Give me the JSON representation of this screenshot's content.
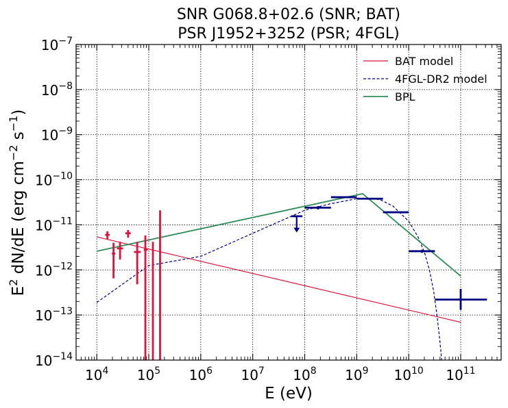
{
  "chart_data": {
    "type": "scatter",
    "title": {
      "line1": "SNR G068.8+02.6 (SNR; BAT)",
      "line2": "PSR J1952+3252 (PSR; 4FGL)"
    },
    "xlabel": "E (eV)",
    "ylabel": "E2 dN/dE (erg cm−2 s−1)",
    "x_scale": "log",
    "y_scale": "log",
    "xlim": [
      4000,
      600000000000
    ],
    "ylim": [
      1e-14,
      1e-07
    ],
    "grid": true,
    "legend_position": "top-right",
    "x_tick_exponents": [
      4,
      5,
      6,
      7,
      8,
      9,
      10,
      11
    ],
    "y_tick_exponents": [
      -14,
      -13,
      -12,
      -11,
      -10,
      -9,
      -8,
      -7
    ],
    "colors": {
      "bat": "#dc143c",
      "fermi": "#000080",
      "bpl": "#2e8b57"
    },
    "series": [
      {
        "name": "BAT model",
        "kind": "line",
        "color": "#dc143c",
        "style": "solid",
        "points": [
          [
            10000,
            5.4e-12
          ],
          [
            100000000000,
            6.9e-14
          ]
        ]
      },
      {
        "name": "4FGL-DR2 model",
        "kind": "line",
        "color": "#000080",
        "style": "dashed",
        "points": [
          [
            10000,
            1.9e-13
          ],
          [
            100000,
            1.25e-12
          ],
          [
            1000000,
            2e-12
          ],
          [
            10000000,
            6.5e-12
          ],
          [
            100000000,
            2.1e-11
          ],
          [
            300000000,
            2.9e-11
          ],
          [
            1000000000,
            3.8e-11
          ],
          [
            2000000000,
            3.9e-11
          ],
          [
            3000000000,
            3.5e-11
          ],
          [
            5000000000,
            2.6e-11
          ],
          [
            10000000000,
            1.2e-11
          ],
          [
            15000000000,
            5.5e-12
          ],
          [
            20000000000,
            2.5e-12
          ],
          [
            25000000000,
            1e-12
          ],
          [
            30000000000,
            3.5e-13
          ],
          [
            35000000000,
            1e-13
          ],
          [
            40000000000,
            2.5e-14
          ],
          [
            43000000000,
            1e-14
          ]
        ]
      },
      {
        "name": "BPL",
        "kind": "line",
        "color": "#2e8b57",
        "style": "solid",
        "points": [
          [
            10000,
            2.6e-12
          ],
          [
            1300000000,
            4.9e-11
          ],
          [
            100000000000,
            7.3e-13
          ]
        ]
      },
      {
        "name": "BAT data",
        "kind": "errorbar",
        "color": "#dc143c",
        "points": [
          {
            "x": 16000,
            "xlo": 14500,
            "xhi": 17700,
            "y": 6e-12,
            "ylo": 4.8e-12,
            "yhi": 7.2e-12
          },
          {
            "x": 21000,
            "xlo": 19500,
            "xhi": 22800,
            "y": 2.3e-12,
            "ylo": 6.5e-13,
            "yhi": 4e-12
          },
          {
            "x": 28000,
            "xlo": 24500,
            "xhi": 32000,
            "y": 3e-12,
            "ylo": 1.7e-12,
            "yhi": 4.2e-12
          },
          {
            "x": 40000,
            "xlo": 35500,
            "xhi": 45000,
            "y": 6.5e-12,
            "ylo": 5.2e-12,
            "yhi": 7.7e-12
          },
          {
            "x": 60000,
            "xlo": 52000,
            "xhi": 70000,
            "y": 2.5e-12,
            "ylo": 4.8e-13,
            "yhi": 4.2e-12
          },
          {
            "x": 86000,
            "xlo": 80000,
            "xhi": 95000,
            "y": 2.8e-12,
            "ylo": 1e-14,
            "yhi": 5.8e-12
          },
          {
            "x": 120000,
            "xlo": 118000,
            "xhi": 122000,
            "y": 2.6e-12,
            "ylo": 1e-14,
            "yhi": 4.2e-12
          },
          {
            "x": 165000,
            "xlo": 163000,
            "xhi": 167000,
            "y": 3.5e-12,
            "ylo": 1e-14,
            "yhi": 2.1e-11
          }
        ]
      },
      {
        "name": "4FGL data",
        "kind": "errorbar",
        "color": "#000080",
        "points": [
          {
            "x": 180000000,
            "xlo": 100000000,
            "xhi": 320000000,
            "y": 2.4e-11,
            "ylo": 2.2e-11,
            "yhi": 2.6e-11
          },
          {
            "x": 570000000,
            "xlo": 320000000,
            "xhi": 1000000000,
            "y": 4.1e-11,
            "ylo": 4e-11,
            "yhi": 4.2e-11
          },
          {
            "x": 1800000000,
            "xlo": 1000000000,
            "xhi": 3200000000,
            "y": 3.8e-11,
            "ylo": 3.7e-11,
            "yhi": 3.9e-11
          },
          {
            "x": 5700000000,
            "xlo": 3200000000,
            "xhi": 10000000000,
            "y": 1.9e-11,
            "ylo": 1.85e-11,
            "yhi": 1.95e-11
          },
          {
            "x": 18000000000,
            "xlo": 10000000000,
            "xhi": 32000000000,
            "y": 2.6e-12,
            "ylo": 2.4e-12,
            "yhi": 2.8e-12
          },
          {
            "x": 100000000000,
            "xlo": 32000000000,
            "xhi": 320000000000,
            "y": 2.2e-13,
            "ylo": 1.3e-13,
            "yhi": 3.8e-13
          }
        ]
      },
      {
        "name": "4FGL upper limit",
        "kind": "upper_limit",
        "color": "#000080",
        "points": [
          {
            "x": 70000000,
            "xlo": 55000000,
            "xhi": 90000000,
            "y": 1.55e-11,
            "arrow_to": 7e-12
          }
        ]
      }
    ],
    "legend": [
      {
        "label": "BAT model",
        "color": "#dc143c",
        "style": "solid"
      },
      {
        "label": "4FGL-DR2 model",
        "color": "#000080",
        "style": "dashed"
      },
      {
        "label": "BPL",
        "color": "#2e8b57",
        "style": "solid"
      }
    ]
  }
}
